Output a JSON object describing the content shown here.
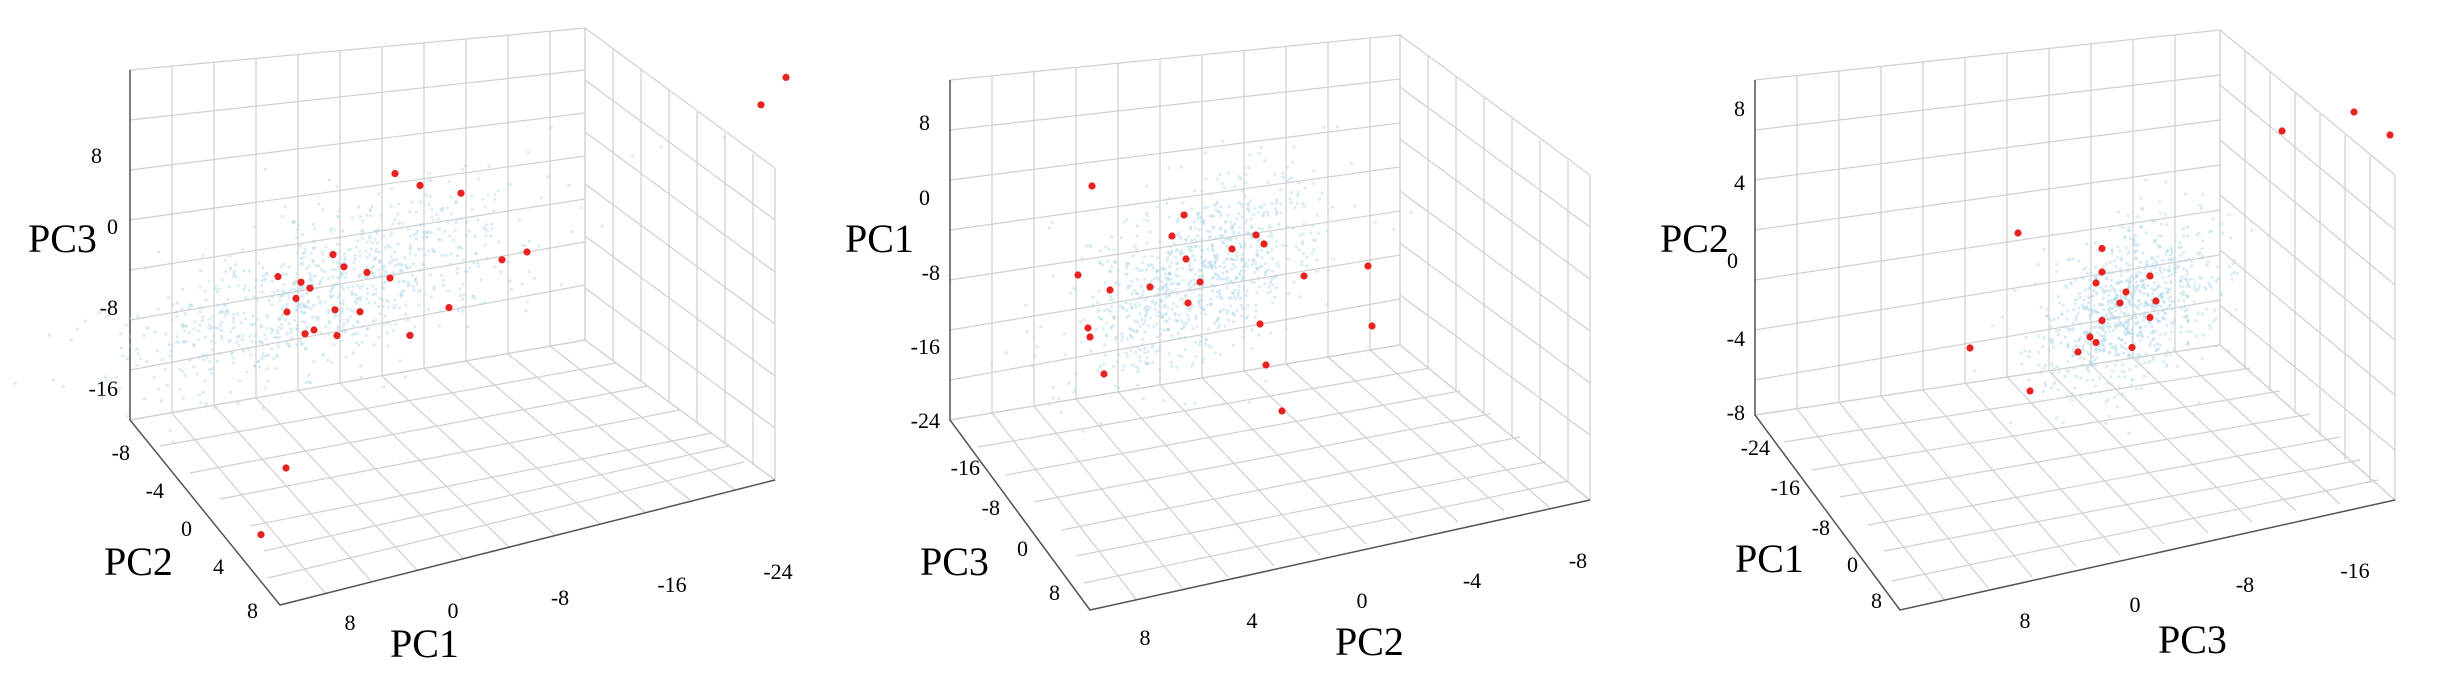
{
  "panels": [
    {
      "axis_labels": {
        "left": "PC3",
        "bottom_left": "PC2",
        "bottom_right": "PC1"
      },
      "ticks": {
        "left": [
          "8",
          "0",
          "-8",
          "-16"
        ],
        "bottom_left": [
          "-8",
          "-4",
          "0",
          "4",
          "8"
        ],
        "bottom_right": [
          "8",
          "0",
          "-8",
          "-16",
          "-24"
        ]
      }
    },
    {
      "axis_labels": {
        "left": "PC1",
        "bottom_left": "PC3",
        "bottom_right": "PC2"
      },
      "ticks": {
        "left": [
          "8",
          "0",
          "-8",
          "-16",
          "-24"
        ],
        "bottom_left": [
          "-16",
          "-8",
          "0",
          "8"
        ],
        "bottom_right": [
          "8",
          "4",
          "0",
          "-4",
          "-8"
        ]
      }
    },
    {
      "axis_labels": {
        "left": "PC2",
        "bottom_left": "PC1",
        "bottom_right": "PC3"
      },
      "ticks": {
        "left": [
          "8",
          "4",
          "0",
          "-4",
          "-8"
        ],
        "bottom_left": [
          "-24",
          "-16",
          "-8",
          "0",
          "8"
        ],
        "bottom_right": [
          "8",
          "0",
          "-8",
          "-16"
        ]
      }
    }
  ],
  "chart_data": [
    {
      "type": "scatter",
      "x_axis": "PC1",
      "y_axis": "PC2",
      "z_axis": "PC3",
      "background_cluster": {
        "color": "#add8e6",
        "center": [
          4,
          0,
          -3
        ],
        "spread": [
          6,
          3,
          3
        ]
      },
      "highlight_color": "#e8231f",
      "series": [
        {
          "points": [
            [
              6,
              -2,
              -4
            ],
            [
              4,
              -1,
              -6
            ],
            [
              2,
              0,
              -6
            ],
            [
              5,
              -3,
              -2
            ],
            [
              7,
              -1,
              -5
            ],
            [
              3,
              1,
              -7
            ],
            [
              1,
              -2,
              -5
            ],
            [
              6,
              0,
              -3
            ],
            [
              8,
              -2,
              -2
            ],
            [
              4,
              2,
              -5
            ],
            [
              2,
              -1,
              -3
            ],
            [
              5,
              1,
              -6
            ],
            [
              7,
              -3,
              -4
            ],
            [
              3,
              0,
              -1
            ],
            [
              -6,
              -2,
              -6
            ],
            [
              -4,
              1,
              -7
            ],
            [
              -8,
              -1,
              -5
            ],
            [
              -2,
              2,
              -8
            ],
            [
              0,
              -4,
              2
            ],
            [
              2,
              -5,
              3
            ],
            [
              -3,
              -3,
              1
            ],
            [
              -22,
              -6,
              2
            ],
            [
              -20,
              -7,
              -1
            ],
            [
              4,
              6,
              -15
            ],
            [
              6,
              5,
              -22
            ]
          ]
        }
      ]
    },
    {
      "type": "scatter",
      "x_axis": "PC2",
      "y_axis": "PC3",
      "z_axis": "PC1",
      "background_cluster": {
        "color": "#add8e6",
        "center": [
          2,
          -4,
          -5
        ],
        "spread": [
          2,
          5,
          5
        ]
      },
      "highlight_color": "#e8231f",
      "series": [
        {
          "points": [
            [
              4,
              -8,
              -2
            ],
            [
              3,
              -6,
              -4
            ],
            [
              2,
              -4,
              -6
            ],
            [
              5,
              -2,
              -3
            ],
            [
              1,
              -9,
              -5
            ],
            [
              3,
              0,
              -2
            ],
            [
              0,
              -6,
              -4
            ],
            [
              2,
              -2,
              -7
            ],
            [
              4,
              -10,
              -1
            ],
            [
              1,
              -5,
              -3
            ],
            [
              6,
              -3,
              -10
            ],
            [
              7,
              -7,
              -12
            ],
            [
              5,
              -1,
              -14
            ],
            [
              -2,
              -4,
              -8
            ],
            [
              -4,
              -6,
              -10
            ],
            [
              -6,
              2,
              -12
            ],
            [
              8,
              -12,
              4
            ],
            [
              9,
              -14,
              -10
            ],
            [
              2,
              -14,
              -22
            ],
            [
              -3,
              4,
              -20
            ],
            [
              -1,
              -2,
              -18
            ]
          ]
        }
      ]
    },
    {
      "type": "scatter",
      "x_axis": "PC3",
      "y_axis": "PC1",
      "z_axis": "PC2",
      "background_cluster": {
        "color": "#add8e6",
        "center": [
          -4,
          2,
          -3
        ],
        "spread": [
          3,
          4,
          2
        ]
      },
      "highlight_color": "#e8231f",
      "series": [
        {
          "points": [
            [
              -4,
              2,
              -2
            ],
            [
              -3,
              4,
              -3
            ],
            [
              -5,
              0,
              -4
            ],
            [
              -2,
              3,
              -1
            ],
            [
              -6,
              1,
              -3
            ],
            [
              -4,
              -2,
              -2
            ],
            [
              -3,
              5,
              -4
            ],
            [
              -5,
              3,
              -5
            ],
            [
              -2,
              -1,
              -3
            ],
            [
              -4,
              6,
              0
            ],
            [
              -3,
              4,
              1
            ],
            [
              2,
              -4,
              -5
            ],
            [
              4,
              -6,
              -6
            ],
            [
              6,
              -2,
              -7
            ],
            [
              8,
              4,
              -3
            ],
            [
              -12,
              -20,
              2
            ],
            [
              -14,
              -22,
              0
            ],
            [
              10,
              -8,
              1
            ],
            [
              -10,
              -12,
              3
            ]
          ]
        }
      ]
    }
  ]
}
